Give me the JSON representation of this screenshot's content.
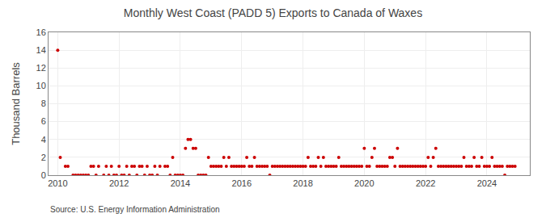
{
  "chart_data": {
    "type": "scatter",
    "title": "Monthly West Coast (PADD 5) Exports to Canada of Waxes",
    "y_label": "Thousand Barrels",
    "annotations": [
      "Source: U.S. Energy Information Administration"
    ],
    "color": "#cc0000",
    "grid": true,
    "xlim": [
      2009.7,
      2025.4
    ],
    "xticks": [
      2010,
      2012,
      2014,
      2016,
      2018,
      2020,
      2022,
      2024
    ],
    "ylim": [
      0,
      16
    ],
    "yticks": [
      0,
      2,
      4,
      6,
      8,
      10,
      12,
      14,
      16
    ],
    "x": [
      2010.0,
      2010.083,
      2010.25,
      2010.333,
      2010.5,
      2010.583,
      2010.667,
      2010.75,
      2010.833,
      2010.917,
      2011.0,
      2011.083,
      2011.167,
      2011.25,
      2011.333,
      2011.5,
      2011.583,
      2011.667,
      2011.75,
      2011.833,
      2011.917,
      2012.0,
      2012.083,
      2012.167,
      2012.25,
      2012.333,
      2012.417,
      2012.5,
      2012.583,
      2012.667,
      2012.75,
      2012.833,
      2012.917,
      2013.0,
      2013.083,
      2013.167,
      2013.25,
      2013.333,
      2013.5,
      2013.583,
      2013.667,
      2013.75,
      2013.833,
      2013.917,
      2014.0,
      2014.083,
      2014.167,
      2014.25,
      2014.333,
      2014.417,
      2014.5,
      2014.583,
      2014.667,
      2014.75,
      2014.833,
      2014.917,
      2015.0,
      2015.083,
      2015.167,
      2015.25,
      2015.333,
      2015.417,
      2015.5,
      2015.583,
      2015.667,
      2015.75,
      2015.833,
      2015.917,
      2016.0,
      2016.083,
      2016.167,
      2016.25,
      2016.333,
      2016.417,
      2016.5,
      2016.583,
      2016.667,
      2016.75,
      2016.833,
      2016.917,
      2017.0,
      2017.083,
      2017.167,
      2017.25,
      2017.333,
      2017.417,
      2017.5,
      2017.583,
      2017.667,
      2017.75,
      2017.833,
      2017.917,
      2018.0,
      2018.083,
      2018.167,
      2018.25,
      2018.333,
      2018.417,
      2018.5,
      2018.583,
      2018.667,
      2018.75,
      2018.833,
      2018.917,
      2019.0,
      2019.083,
      2019.167,
      2019.25,
      2019.333,
      2019.417,
      2019.5,
      2019.583,
      2019.667,
      2019.75,
      2019.833,
      2019.917,
      2020.0,
      2020.083,
      2020.167,
      2020.25,
      2020.333,
      2020.417,
      2020.5,
      2020.583,
      2020.667,
      2020.75,
      2020.833,
      2020.917,
      2021.0,
      2021.083,
      2021.167,
      2021.25,
      2021.333,
      2021.417,
      2021.5,
      2021.583,
      2021.667,
      2021.75,
      2021.833,
      2021.917,
      2022.0,
      2022.083,
      2022.167,
      2022.25,
      2022.333,
      2022.417,
      2022.5,
      2022.583,
      2022.667,
      2022.75,
      2022.833,
      2022.917,
      2023.0,
      2023.083,
      2023.167,
      2023.25,
      2023.333,
      2023.417,
      2023.5,
      2023.583,
      2023.667,
      2023.75,
      2023.833,
      2023.917,
      2024.0,
      2024.083,
      2024.167,
      2024.25,
      2024.333,
      2024.417,
      2024.5,
      2024.583,
      2024.667,
      2024.75,
      2024.833,
      2024.917
    ],
    "values": [
      14,
      2,
      1,
      1,
      0,
      0,
      0,
      0,
      0,
      0,
      0,
      1,
      1,
      0,
      1,
      0,
      1,
      0,
      1,
      0,
      0,
      1,
      0,
      0,
      1,
      0,
      1,
      1,
      0,
      1,
      1,
      0,
      1,
      0,
      0,
      1,
      0,
      1,
      1,
      1,
      0,
      2,
      0,
      0,
      0,
      0,
      3,
      4,
      4,
      3,
      3,
      0,
      0,
      0,
      0,
      2,
      1,
      1,
      1,
      1,
      1,
      2,
      1,
      2,
      1,
      1,
      1,
      1,
      1,
      1,
      2,
      1,
      1,
      2,
      1,
      1,
      1,
      1,
      1,
      0,
      1,
      1,
      1,
      1,
      1,
      1,
      1,
      1,
      1,
      1,
      1,
      1,
      1,
      1,
      2,
      1,
      1,
      1,
      2,
      1,
      2,
      1,
      1,
      1,
      1,
      1,
      2,
      1,
      1,
      1,
      1,
      1,
      1,
      1,
      1,
      1,
      3,
      1,
      1,
      2,
      3,
      1,
      1,
      1,
      1,
      1,
      2,
      2,
      1,
      3,
      1,
      1,
      1,
      1,
      1,
      1,
      1,
      1,
      1,
      1,
      1,
      2,
      1,
      2,
      3,
      1,
      1,
      1,
      1,
      1,
      1,
      1,
      1,
      1,
      1,
      2,
      1,
      1,
      1,
      2,
      1,
      1,
      2,
      1,
      1,
      1,
      2,
      1,
      1,
      1,
      1,
      0,
      1,
      1,
      1,
      1
    ]
  }
}
